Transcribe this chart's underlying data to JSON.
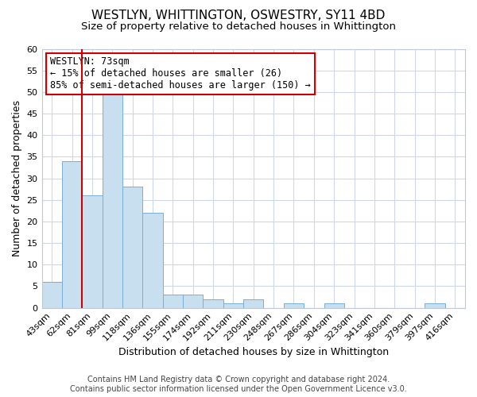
{
  "title": "WESTLYN, WHITTINGTON, OSWESTRY, SY11 4BD",
  "subtitle": "Size of property relative to detached houses in Whittington",
  "xlabel": "Distribution of detached houses by size in Whittington",
  "ylabel": "Number of detached properties",
  "bin_labels": [
    "43sqm",
    "62sqm",
    "81sqm",
    "99sqm",
    "118sqm",
    "136sqm",
    "155sqm",
    "174sqm",
    "192sqm",
    "211sqm",
    "230sqm",
    "248sqm",
    "267sqm",
    "286sqm",
    "304sqm",
    "323sqm",
    "341sqm",
    "360sqm",
    "379sqm",
    "397sqm",
    "416sqm"
  ],
  "bar_heights": [
    6,
    34,
    26,
    50,
    28,
    22,
    3,
    3,
    2,
    1,
    2,
    0,
    1,
    0,
    1,
    0,
    0,
    0,
    0,
    1,
    0
  ],
  "bar_color": "#c8dff0",
  "bar_edge_color": "#7bafd4",
  "vline_color": "#cc0000",
  "vline_x_idx": 1.5,
  "ylim": [
    0,
    60
  ],
  "yticks": [
    0,
    5,
    10,
    15,
    20,
    25,
    30,
    35,
    40,
    45,
    50,
    55,
    60
  ],
  "annotation_title": "WESTLYN: 73sqm",
  "annotation_line1": "← 15% of detached houses are smaller (26)",
  "annotation_line2": "85% of semi-detached houses are larger (150) →",
  "footer_line1": "Contains HM Land Registry data © Crown copyright and database right 2024.",
  "footer_line2": "Contains public sector information licensed under the Open Government Licence v3.0.",
  "title_fontsize": 11,
  "subtitle_fontsize": 9.5,
  "axis_label_fontsize": 9,
  "tick_fontsize": 8,
  "annotation_fontsize": 8.5,
  "footer_fontsize": 7
}
